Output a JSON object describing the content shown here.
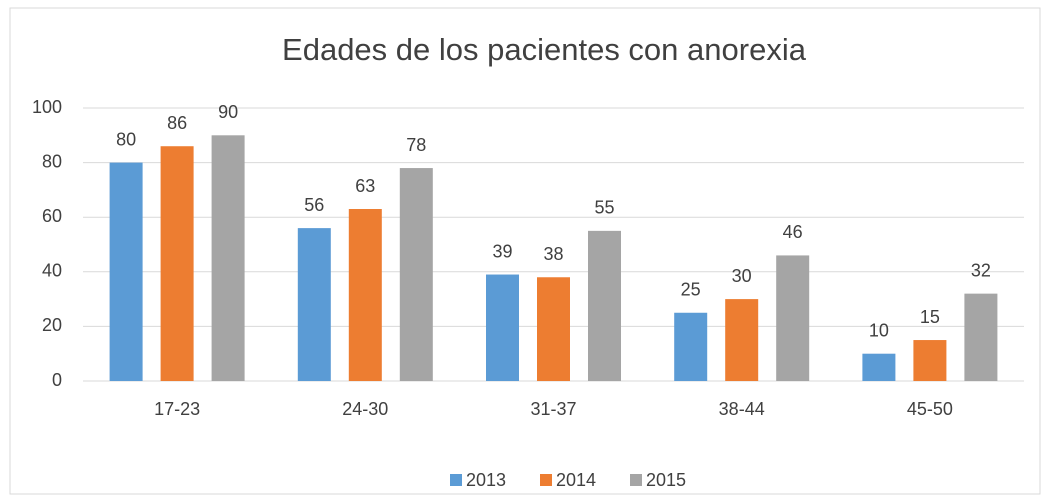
{
  "chart_data": {
    "type": "bar",
    "title": "Edades de los pacientes con anorexia",
    "categories": [
      "17-23",
      "24-30",
      "31-37",
      "38-44",
      "45-50"
    ],
    "series": [
      {
        "name": "2013",
        "color": "#5b9bd5",
        "values": [
          80,
          56,
          39,
          25,
          10
        ]
      },
      {
        "name": "2014",
        "color": "#ed7d31",
        "values": [
          86,
          63,
          38,
          30,
          15
        ]
      },
      {
        "name": "2015",
        "color": "#a5a5a5",
        "values": [
          90,
          78,
          55,
          46,
          32
        ]
      }
    ],
    "ylim": [
      0,
      100
    ],
    "yticks": [
      0,
      20,
      40,
      60,
      80,
      100
    ],
    "grid": true,
    "legend": "bottom"
  }
}
